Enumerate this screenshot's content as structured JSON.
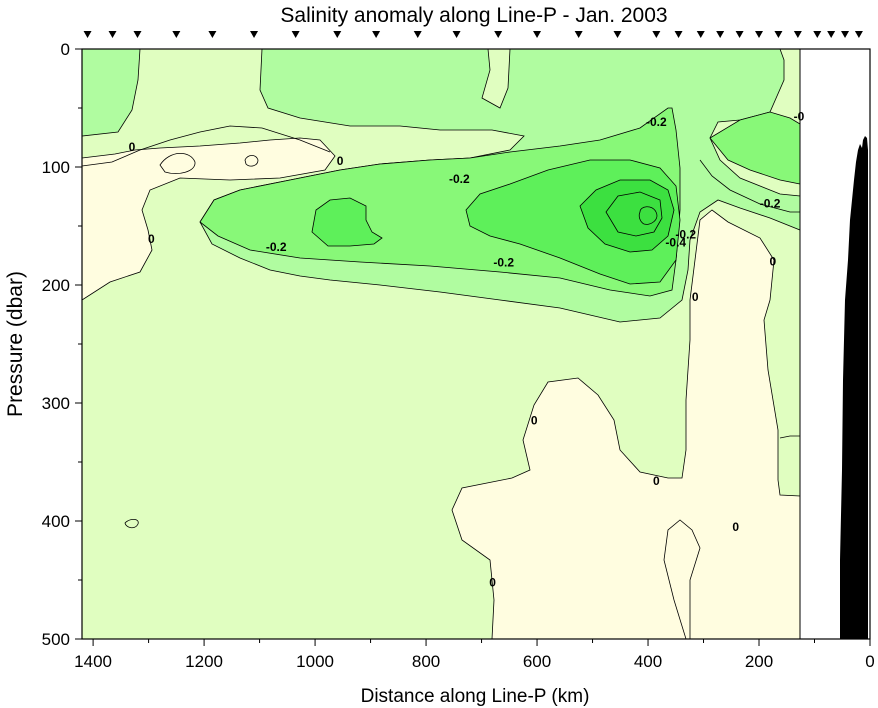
{
  "chart_data": {
    "type": "contour",
    "title": "Salinity anomaly along Line-P - Jan. 2003",
    "xlabel": "Distance along Line-P (km)",
    "ylabel": "Pressure (dbar)",
    "xlim": [
      1420,
      0
    ],
    "ylim": [
      500,
      0
    ],
    "x_ticks": [
      1400,
      1200,
      1000,
      800,
      600,
      400,
      200,
      0
    ],
    "x_tick_labels": [
      "1400",
      "1200",
      "1000",
      "800",
      "600",
      "400",
      "200",
      "0"
    ],
    "y_ticks": [
      0,
      100,
      200,
      300,
      400,
      500
    ],
    "y_tick_labels": [
      "0",
      "100",
      "200",
      "300",
      "400",
      "500"
    ],
    "station_marker_km": [
      1410,
      1365,
      1320,
      1250,
      1185,
      1110,
      1035,
      960,
      890,
      815,
      745,
      670,
      600,
      525,
      455,
      385,
      345,
      305,
      270,
      235,
      200,
      165,
      130,
      95,
      70,
      45,
      20
    ],
    "data_extent_km": 125,
    "contour_levels": [
      -0.8,
      -0.6,
      -0.4,
      -0.2,
      0,
      0.2
    ],
    "contour_labels": [
      {
        "text": "0",
        "x": 1295,
        "y": 161
      },
      {
        "text": "0",
        "x": 1330,
        "y": 83
      },
      {
        "text": "0",
        "x": 955,
        "y": 95
      },
      {
        "text": "-0.2",
        "x": 1070,
        "y": 168
      },
      {
        "text": "-0.2",
        "x": 740,
        "y": 110
      },
      {
        "text": "-0.2",
        "x": 660,
        "y": 181
      },
      {
        "text": "-0.2",
        "x": 385,
        "y": 62
      },
      {
        "text": "-0",
        "x": 128,
        "y": 57
      },
      {
        "text": "-0.2",
        "x": 180,
        "y": 131
      },
      {
        "text": "-0.4",
        "x": 350,
        "y": 164
      },
      {
        "text": "-0.2",
        "x": 332,
        "y": 157
      },
      {
        "text": "0",
        "x": 315,
        "y": 210
      },
      {
        "text": "0",
        "x": 175,
        "y": 180
      },
      {
        "text": "0",
        "x": 605,
        "y": 315
      },
      {
        "text": "0",
        "x": 385,
        "y": 366
      },
      {
        "text": "0",
        "x": 242,
        "y": 405
      },
      {
        "text": "0",
        "x": 680,
        "y": 452
      }
    ],
    "colors": {
      "pos_0_0.2": "#fffde0",
      "neg_0_-0.2": "#e0fec0",
      "neg_0.2_0.4": "#b0fca0",
      "neg_0.4_0.6": "#88f878",
      "neg_0.6_0.8": "#5ef05a",
      "neg_0.8_1.0": "#3ce040",
      "line": "#000000",
      "bathymetry": "#000000",
      "background": "#ffffff"
    },
    "grid": false
  }
}
